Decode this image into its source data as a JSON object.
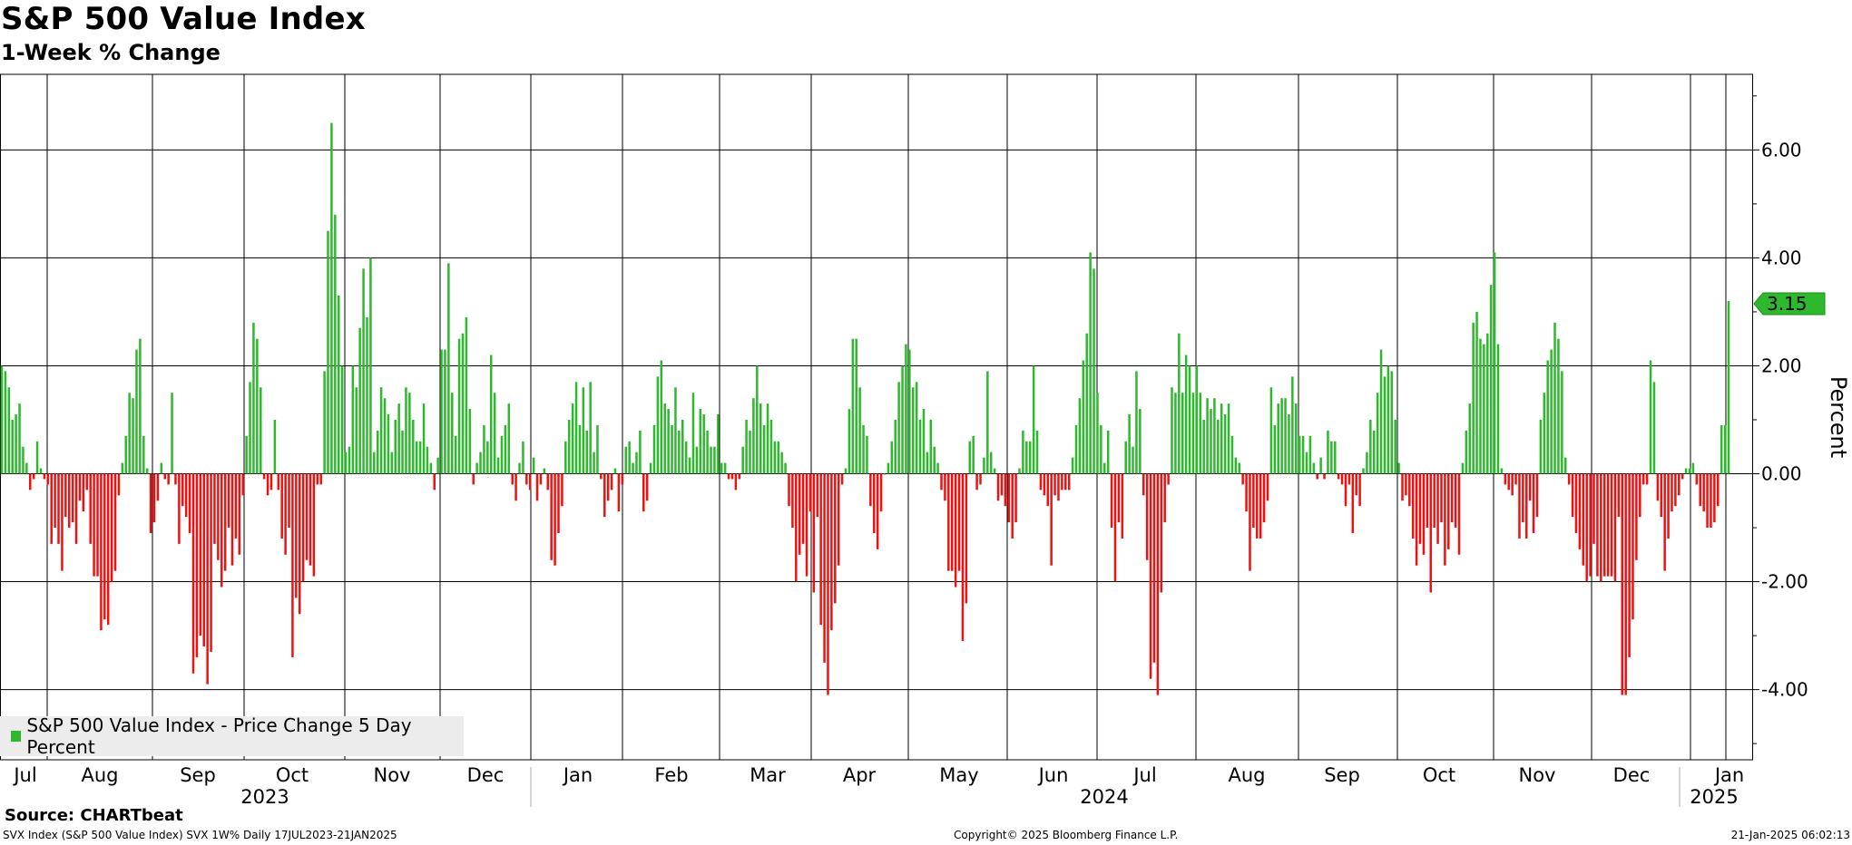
{
  "title": "S&P 500 Value Index",
  "subtitle": "1-Week % Change",
  "source": "Source: CHARTbeat",
  "footer_left": "SVX Index (S&P 500 Value Index) SVX 1W%  Daily 17JUL2023-21JAN2025",
  "footer_mid": "Copyright© 2025 Bloomberg Finance L.P.",
  "footer_right": "21-Jan-2025 06:02:13",
  "legend_label": "S&P 500 Value Index - Price Change 5 Day Percent",
  "last_value_label": "3.15",
  "colors": {
    "positive": "#2eb82e",
    "negative": "#ee1111",
    "last_value_bg": "#2eb82e"
  },
  "chart_data": {
    "type": "bar",
    "ylabel": "Percent",
    "ylim": [
      -5.3,
      7.4
    ],
    "yticks": [
      -4,
      -2,
      0,
      2,
      4,
      6
    ],
    "ytick_labels": [
      "-4.00",
      "-2.00",
      "0.00",
      "2.00",
      "4.00",
      "6.00"
    ],
    "grid": true,
    "legend_position": "bottom-left",
    "months": [
      "Jul",
      "Aug",
      "Sep",
      "Oct",
      "Nov",
      "Dec",
      "Jan",
      "Feb",
      "Mar",
      "Apr",
      "May",
      "Jun",
      "Jul",
      "Aug",
      "Sep",
      "Oct",
      "Nov",
      "Dec",
      "Jan"
    ],
    "years": [
      "2023",
      "2024",
      "2025"
    ],
    "last_value": 3.15,
    "values": [
      2.0,
      1.9,
      1.6,
      1.0,
      1.1,
      1.3,
      0.5,
      0.2,
      -0.3,
      -0.1,
      0.6,
      0.1,
      -0.1,
      -0.2,
      -1.3,
      -1.0,
      -1.3,
      -1.8,
      -0.8,
      -1.0,
      -0.9,
      -1.3,
      -0.5,
      -0.7,
      -0.3,
      -1.3,
      -1.9,
      -1.9,
      -2.9,
      -2.7,
      -2.8,
      -2.0,
      -1.8,
      -0.4,
      0.2,
      0.7,
      1.5,
      1.4,
      2.3,
      2.5,
      0.7,
      0.1,
      -1.1,
      -0.9,
      -0.5,
      0.2,
      -0.1,
      -0.2,
      1.5,
      -0.2,
      -1.3,
      -0.6,
      -0.8,
      -1.1,
      -3.7,
      -3.4,
      -3.0,
      -3.2,
      -3.9,
      -3.3,
      -1.3,
      -1.6,
      -2.1,
      -1.8,
      -1.0,
      -1.7,
      -1.2,
      -1.5,
      -0.4,
      0.7,
      1.7,
      2.8,
      2.5,
      1.6,
      -0.1,
      -0.4,
      -0.3,
      1.0,
      -0.3,
      -1.2,
      -1.5,
      -1.0,
      -3.4,
      -2.3,
      -2.6,
      -2.0,
      -1.6,
      -1.7,
      -1.9,
      -0.2,
      -0.2,
      1.9,
      4.5,
      6.5,
      4.8,
      3.3,
      2.0,
      0.4,
      0.5,
      2.0,
      1.6,
      2.7,
      3.8,
      2.9,
      4.0,
      0.4,
      0.8,
      1.6,
      1.4,
      1.1,
      0.4,
      1.0,
      1.3,
      0.8,
      1.6,
      1.5,
      1.0,
      0.6,
      0.6,
      1.3,
      0.5,
      0.2,
      -0.3,
      0.3,
      2.3,
      2.3,
      3.9,
      1.5,
      0.7,
      2.5,
      2.6,
      2.9,
      1.2,
      -0.2,
      0.2,
      0.4,
      0.9,
      0.6,
      2.2,
      1.5,
      0.3,
      0.7,
      0.9,
      1.3,
      -0.2,
      -0.5,
      0.2,
      0.6,
      -0.2,
      -0.3,
      0.3,
      -0.5,
      -0.2,
      0.1,
      -0.3,
      -1.6,
      -1.7,
      -1.1,
      -0.6,
      0.6,
      1.0,
      1.3,
      1.7,
      0.9,
      1.6,
      0.8,
      1.7,
      0.4,
      0.9,
      -0.1,
      -0.8,
      -0.5,
      -0.3,
      0.1,
      -0.7,
      -0.2,
      0.5,
      0.6,
      0.2,
      0.4,
      0.8,
      -0.7,
      -0.5,
      0.2,
      0.9,
      1.8,
      2.1,
      1.3,
      1.2,
      0.9,
      1.6,
      0.8,
      1.0,
      0.6,
      0.3,
      1.5,
      0.5,
      1.2,
      1.1,
      0.8,
      0.5,
      0.5,
      1.1,
      0.2,
      0.2,
      -0.1,
      -0.1,
      -0.3,
      -0.1,
      0.5,
      1.0,
      0.8,
      1.4,
      2.0,
      1.3,
      0.9,
      1.3,
      1.0,
      0.6,
      0.6,
      0.4,
      0.2,
      -0.6,
      -1.0,
      -2.0,
      -1.5,
      -1.3,
      -1.9,
      -0.7,
      -2.2,
      -0.8,
      -2.8,
      -3.5,
      -4.1,
      -2.9,
      -2.4,
      -1.7,
      -0.2,
      0.1,
      1.2,
      2.5,
      2.5,
      1.6,
      0.9,
      0.7,
      -0.6,
      -1.1,
      -1.4,
      -0.7,
      0.0,
      0.2,
      0.6,
      1.0,
      1.7,
      2.0,
      2.4,
      2.3,
      1.6,
      1.7,
      1.0,
      1.2,
      0.4,
      1.0,
      0.5,
      0.2,
      -0.3,
      -0.5,
      -1.8,
      -1.8,
      -2.1,
      -1.8,
      -3.1,
      -2.4,
      0.6,
      0.7,
      -0.3,
      -0.2,
      0.3,
      1.9,
      0.4,
      0.1,
      -0.5,
      -0.4,
      -0.6,
      -0.9,
      -1.2,
      -0.9,
      0.1,
      0.8,
      0.6,
      0.6,
      2.0,
      0.8,
      -0.3,
      -0.4,
      -0.6,
      -1.7,
      -0.4,
      -0.5,
      -0.3,
      -0.3,
      -0.3,
      0.3,
      0.9,
      1.4,
      2.1,
      2.6,
      4.1,
      3.8,
      1.5,
      0.9,
      0.2,
      0.8,
      -1.0,
      -2.0,
      -0.9,
      -1.2,
      0.6,
      1.1,
      0.5,
      1.9,
      1.2,
      -0.4,
      -1.6,
      -3.8,
      -3.5,
      -4.1,
      -2.2,
      -0.9,
      -0.2,
      1.6,
      1.5,
      2.6,
      1.5,
      2.2,
      2.0,
      1.5,
      2.0,
      1.5,
      1.0,
      1.4,
      1.2,
      1.4,
      1.0,
      1.3,
      1.1,
      1.3,
      0.7,
      0.3,
      0.2,
      -0.2,
      -0.7,
      -1.8,
      -1.0,
      -1.2,
      -1.2,
      -0.9,
      -0.5,
      1.6,
      0.9,
      1.3,
      1.4,
      1.4,
      1.1,
      1.8,
      1.3,
      0.7,
      0.7,
      0.4,
      0.7,
      0.2,
      -0.1,
      0.3,
      -0.1,
      0.8,
      0.6,
      0.6,
      -0.1,
      -0.2,
      -0.6,
      -0.2,
      -1.1,
      -0.4,
      -0.6,
      0.1,
      0.4,
      1.0,
      0.8,
      1.5,
      2.3,
      1.8,
      2.0,
      1.9,
      1.0,
      0.2,
      -0.5,
      -0.4,
      -0.6,
      -1.2,
      -1.7,
      -1.3,
      -1.5,
      -1.0,
      -2.2,
      -1.0,
      -1.3,
      -0.9,
      -1.7,
      -1.4,
      -0.9,
      -1.0,
      -1.5,
      0.2,
      0.8,
      1.3,
      2.8,
      3.0,
      2.5,
      2.4,
      2.6,
      3.5,
      4.1,
      2.4,
      0.1,
      -0.2,
      -0.3,
      -0.4,
      -0.2,
      -1.2,
      -0.9,
      -1.2,
      -0.5,
      -1.1,
      -0.8,
      1.0,
      1.5,
      2.1,
      2.3,
      2.8,
      2.5,
      1.9,
      0.3,
      -0.2,
      -0.8,
      -1.1,
      -1.4,
      -1.7,
      -2.0,
      -1.9,
      -1.3,
      -1.9,
      -2.0,
      -1.9,
      -1.9,
      -1.9,
      -2.0,
      -0.8,
      -4.1,
      -4.1,
      -3.4,
      -2.7,
      -1.6,
      -0.8,
      -0.2,
      -0.2,
      2.1,
      1.7,
      -0.5,
      -0.8,
      -1.8,
      -1.2,
      -0.7,
      -0.6,
      -0.4,
      -0.1,
      0.1,
      0.1,
      0.2,
      -0.2,
      -0.6,
      -0.7,
      -1.0,
      -1.0,
      -0.9,
      -0.6,
      0.9,
      0.9,
      3.2
    ]
  }
}
